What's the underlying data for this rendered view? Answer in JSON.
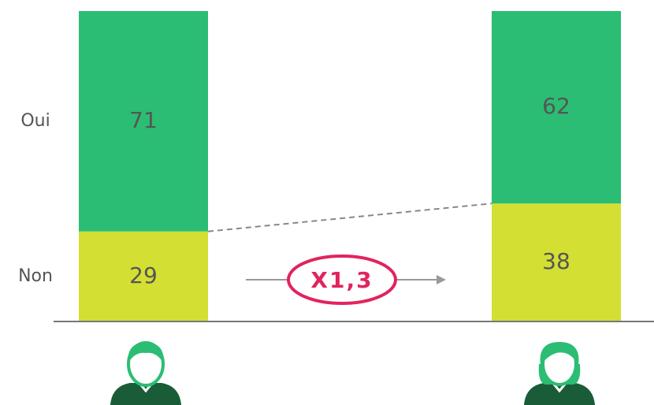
{
  "chart_data": {
    "type": "stacked_bar",
    "categories": [
      null,
      null
    ],
    "series": [
      {
        "name": "Non",
        "color": "#d4df33",
        "values": [
          29,
          38
        ]
      },
      {
        "name": "Oui",
        "color": "#2bbd73",
        "values": [
          71,
          62
        ]
      }
    ],
    "ylim": [
      0,
      100
    ],
    "annotation": "X1,3"
  }
}
